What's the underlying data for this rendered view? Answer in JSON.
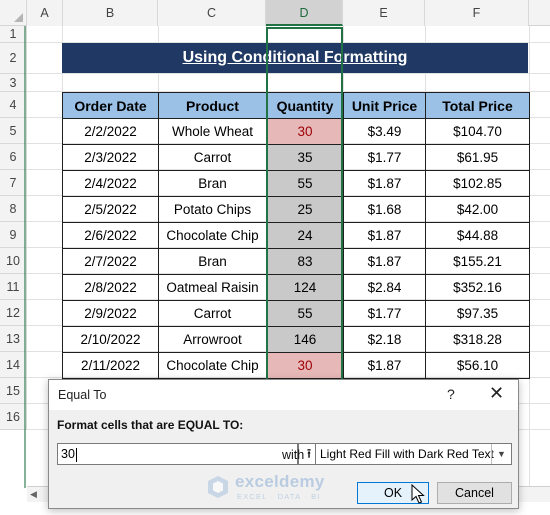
{
  "sheet": {
    "columns": [
      "A",
      "B",
      "C",
      "D",
      "E",
      "F"
    ],
    "selected_column": "D",
    "rows": [
      "1",
      "2",
      "3",
      "4",
      "5",
      "6",
      "7",
      "8",
      "9",
      "10",
      "11",
      "12",
      "13",
      "14",
      "15",
      "16"
    ]
  },
  "banner": {
    "title": "Using Conditional Formatting"
  },
  "table": {
    "headers": [
      "Order Date",
      "Product",
      "Quantity",
      "Unit Price",
      "Total Price"
    ],
    "rows": [
      {
        "date": "2/2/2022",
        "product": "Whole Wheat",
        "qty": "30",
        "unit": "$3.49",
        "total": "$104.70",
        "highlight": true
      },
      {
        "date": "2/3/2022",
        "product": "Carrot",
        "qty": "35",
        "unit": "$1.77",
        "total": "$61.95",
        "highlight": false
      },
      {
        "date": "2/4/2022",
        "product": "Bran",
        "qty": "55",
        "unit": "$1.87",
        "total": "$102.85",
        "highlight": false
      },
      {
        "date": "2/5/2022",
        "product": "Potato Chips",
        "qty": "25",
        "unit": "$1.68",
        "total": "$42.00",
        "highlight": false
      },
      {
        "date": "2/6/2022",
        "product": "Chocolate Chip",
        "qty": "24",
        "unit": "$1.87",
        "total": "$44.88",
        "highlight": false
      },
      {
        "date": "2/7/2022",
        "product": "Bran",
        "qty": "83",
        "unit": "$1.87",
        "total": "$155.21",
        "highlight": false
      },
      {
        "date": "2/8/2022",
        "product": "Oatmeal Raisin",
        "qty": "124",
        "unit": "$2.84",
        "total": "$352.16",
        "highlight": false
      },
      {
        "date": "2/9/2022",
        "product": "Carrot",
        "qty": "55",
        "unit": "$1.77",
        "total": "$97.35",
        "highlight": false
      },
      {
        "date": "2/10/2022",
        "product": "Arrowroot",
        "qty": "146",
        "unit": "$2.18",
        "total": "$318.28",
        "highlight": false
      },
      {
        "date": "2/11/2022",
        "product": "Chocolate Chip",
        "qty": "30",
        "unit": "$1.87",
        "total": "$56.10",
        "highlight": true
      }
    ]
  },
  "dialog": {
    "title": "Equal To",
    "help": "?",
    "close": "✕",
    "label": "Format cells that are EQUAL TO:",
    "input_value": "30",
    "collapse_icon": "⭱",
    "with_label": "with",
    "format_option": "Light Red Fill with Dark Red Text",
    "ok_label": "OK",
    "cancel_label": "Cancel"
  },
  "watermark": {
    "name": "exceldemy",
    "tagline": "EXCEL · DATA · BI"
  },
  "colors": {
    "header_fill": "#9bc2e6",
    "banner_fill": "#1f3864",
    "highlight_fill": "#e6b8b7",
    "highlight_text": "#9c0006",
    "quantity_fill": "#c9c9c9",
    "selection": "#217346"
  }
}
